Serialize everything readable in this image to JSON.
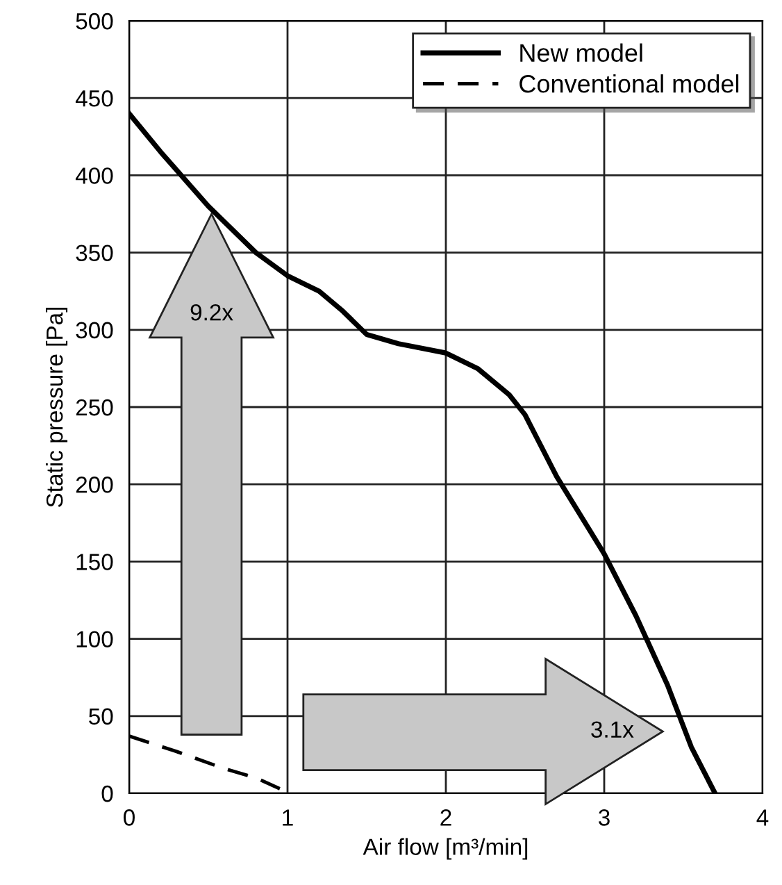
{
  "chart_data": {
    "type": "line",
    "xlabel": "Air flow [m³/min]",
    "ylabel": "Static pressure [Pa]",
    "xlim": [
      0,
      4
    ],
    "ylim": [
      0,
      500
    ],
    "xticks": [
      0,
      1,
      2,
      3,
      4
    ],
    "yticks": [
      0,
      50,
      100,
      150,
      200,
      250,
      300,
      350,
      400,
      450,
      500
    ],
    "grid": true,
    "legend": "top right",
    "marker": "none",
    "annotations": [
      "9.2x",
      "3.1x"
    ],
    "series": [
      {
        "name": "New model",
        "color": "#000000",
        "line_style": "solid",
        "x": [
          0,
          0.2,
          0.5,
          0.8,
          1.0,
          1.2,
          1.35,
          1.5,
          1.7,
          2.0,
          2.2,
          2.4,
          2.5,
          2.7,
          3.0,
          3.2,
          3.4,
          3.55,
          3.7
        ],
        "values": [
          440,
          415,
          380,
          350,
          335,
          325,
          312,
          297,
          291,
          285,
          275,
          258,
          245,
          205,
          155,
          115,
          70,
          30,
          0
        ]
      },
      {
        "name": "Conventional model",
        "color": "#000000",
        "line_style": "dashed",
        "x": [
          0,
          0.3,
          0.6,
          0.8,
          0.95,
          1.0
        ],
        "values": [
          37,
          27,
          16,
          10,
          3,
          1
        ]
      }
    ]
  }
}
